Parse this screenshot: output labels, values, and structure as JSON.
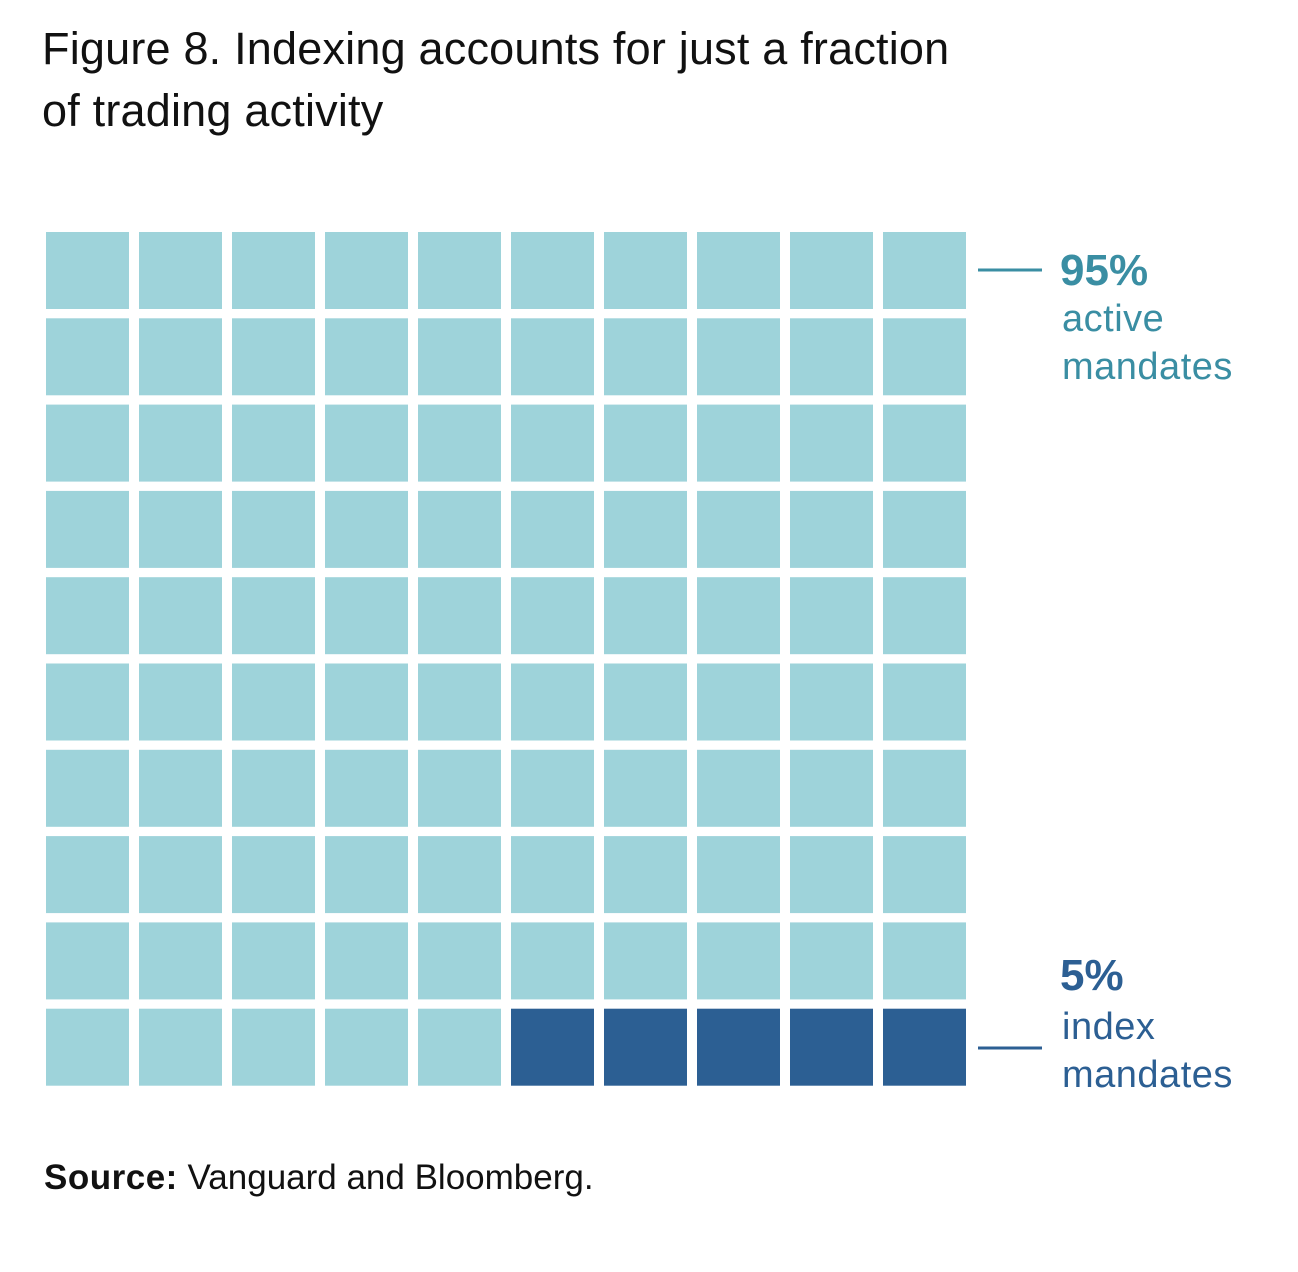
{
  "title": {
    "line1": "Figure 8. Indexing accounts for just a fraction",
    "line2": "of trading activity"
  },
  "chart_data": {
    "type": "waffle",
    "grid": {
      "rows": 10,
      "cols": 10
    },
    "title": "Figure 8. Indexing accounts for just a fraction of trading activity",
    "series": [
      {
        "name": "active mandates",
        "value": 95,
        "percent_label": "95%",
        "label_line1": "active",
        "label_line2": "mandates",
        "color": "#9ed3da"
      },
      {
        "name": "index mandates",
        "value": 5,
        "percent_label": "5%",
        "label_line1": "index",
        "label_line2": "mandates",
        "color": "#2c5f93"
      }
    ],
    "legend_placement": "right"
  },
  "colors": {
    "active": "#9ed3da",
    "index": "#2c5f93",
    "active_label": "#3a8ea3",
    "index_label": "#2c5f93"
  },
  "source": {
    "label": "Source:",
    "text": "Vanguard and Bloomberg."
  }
}
